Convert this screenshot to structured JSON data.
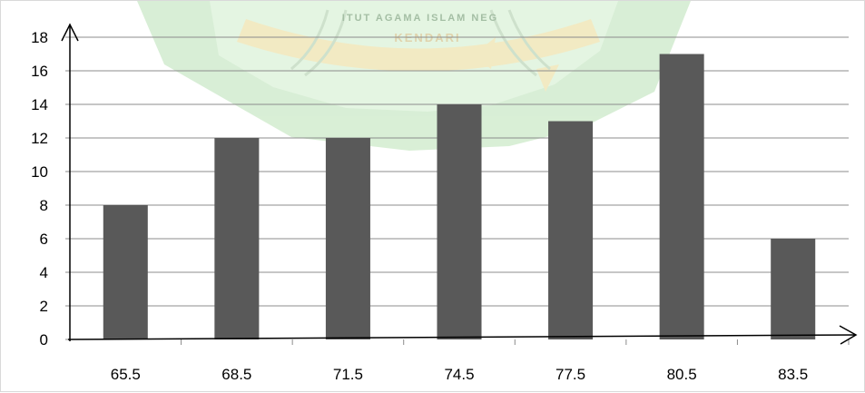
{
  "watermark": {
    "line1": "ITUT AGAMA ISLAM NEG",
    "line2": "KENDARI"
  },
  "colors": {
    "bar": "#595959",
    "grid": "#8c8c8c",
    "axis": "#000000",
    "watermark_green": "#b9e1b5",
    "watermark_gold": "#e9d993"
  },
  "chart_data": {
    "type": "bar",
    "categories": [
      "65.5",
      "68.5",
      "71.5",
      "74.5",
      "77.5",
      "80.5",
      "83.5"
    ],
    "values": [
      8,
      12,
      12,
      14,
      13,
      17,
      6
    ],
    "title": "",
    "xlabel": "",
    "ylabel": "",
    "ylim": [
      0,
      18
    ],
    "yticks": [
      "0",
      "2",
      "4",
      "6",
      "8",
      "10",
      "12",
      "14",
      "16",
      "18"
    ],
    "grid": true,
    "legend": "none"
  }
}
